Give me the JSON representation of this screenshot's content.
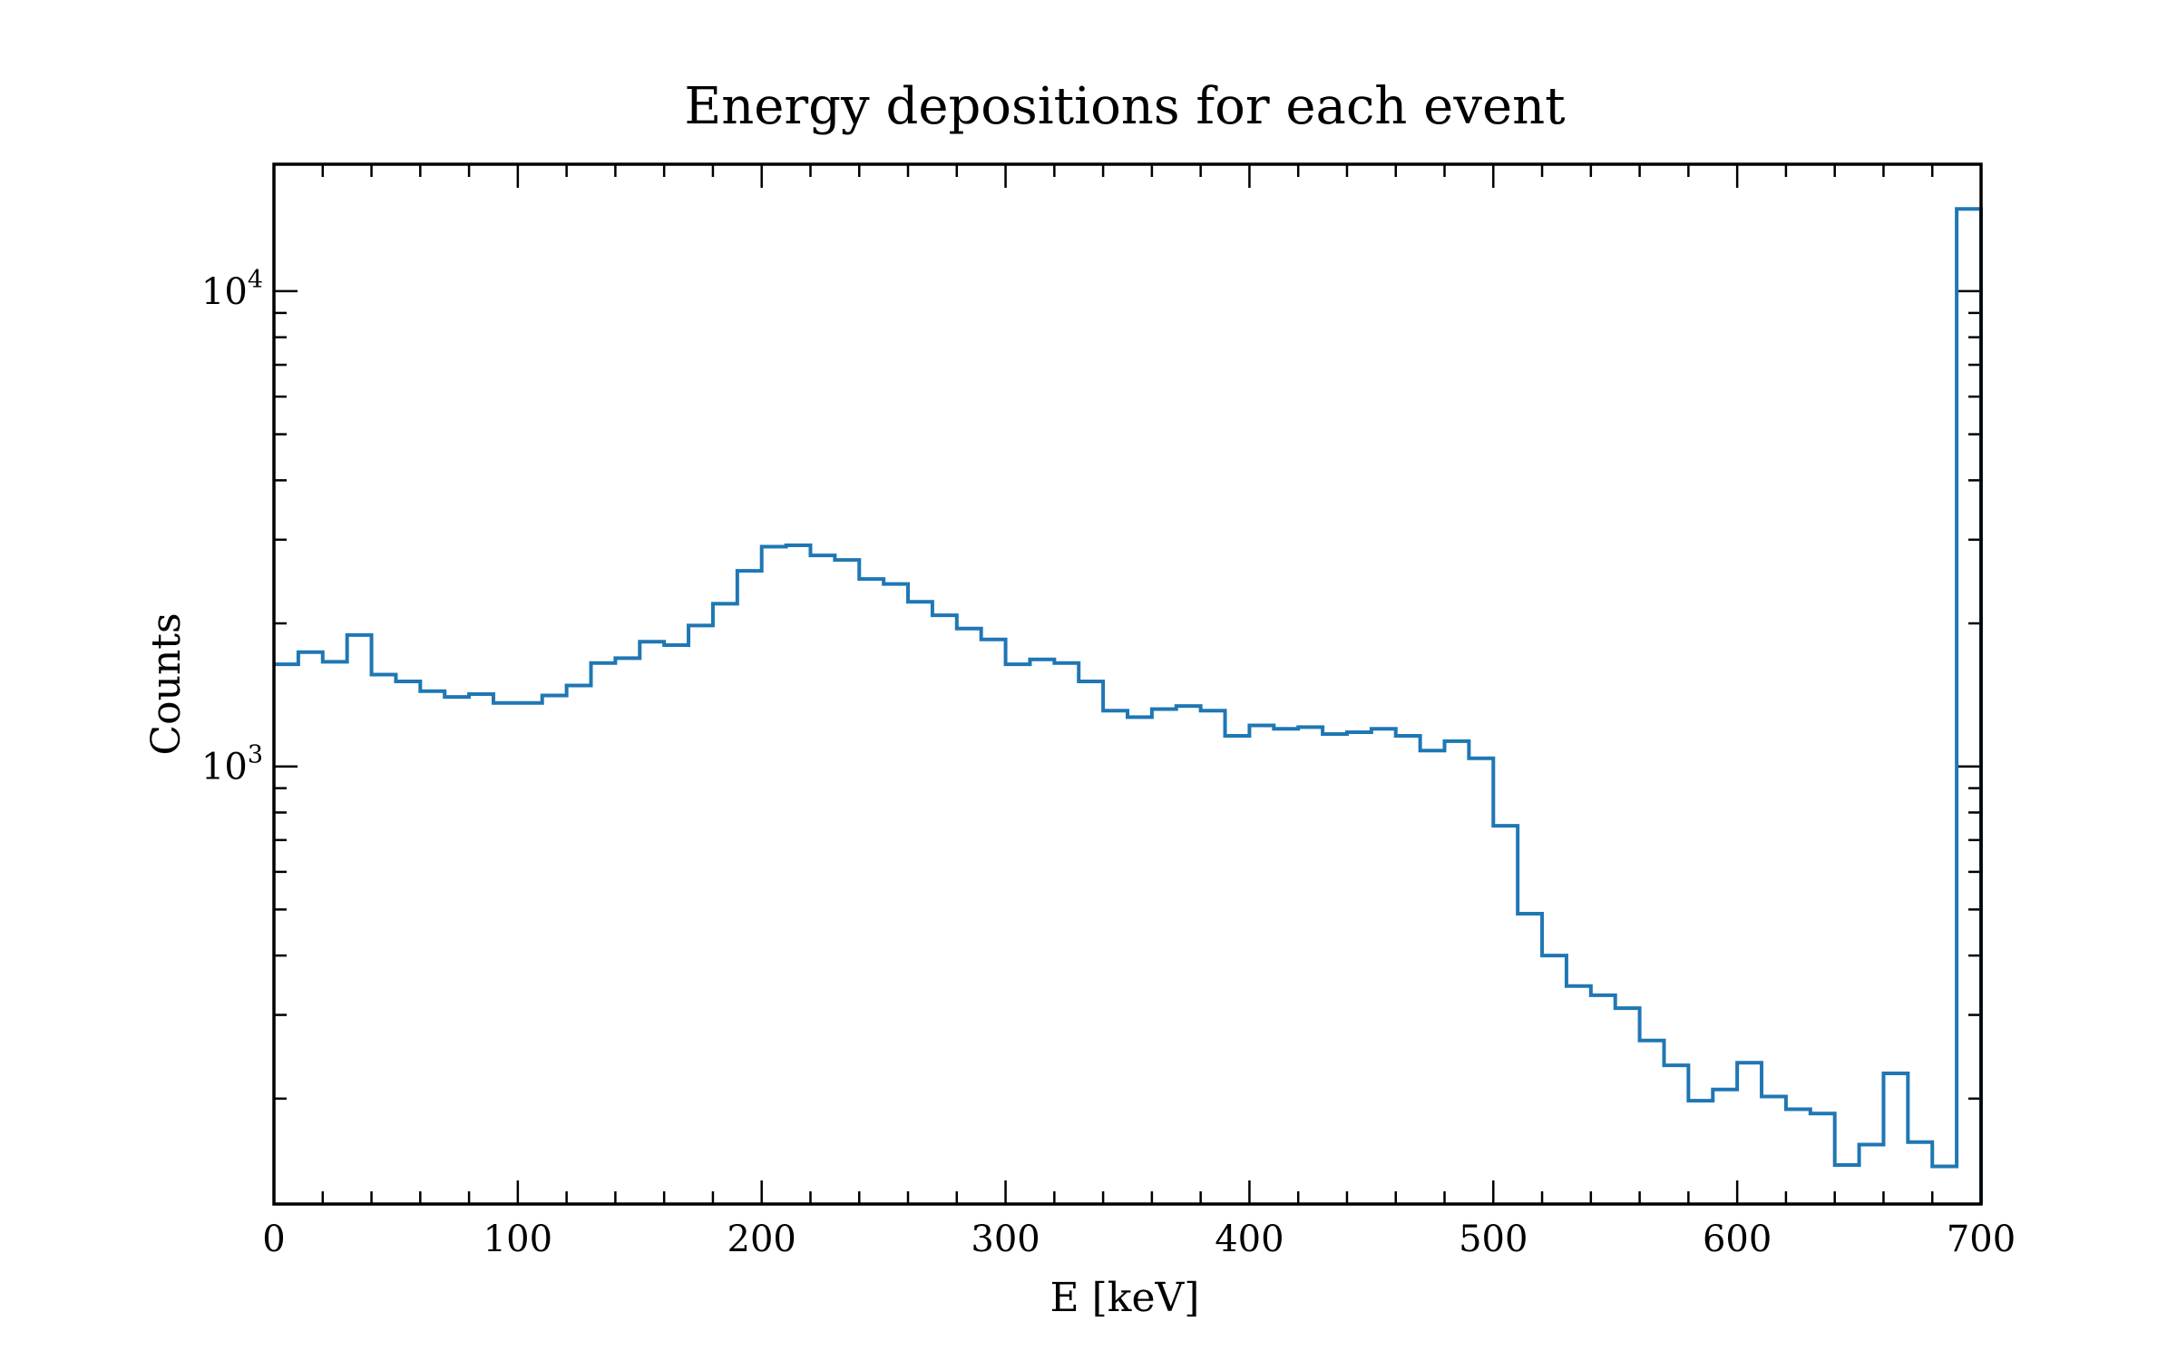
{
  "chart_data": {
    "type": "line",
    "title": "Energy depositions for each event",
    "xlabel": "E [keV]",
    "ylabel": "Counts",
    "xlim": [
      0,
      700
    ],
    "ylim": [
      120,
      18500
    ],
    "yscale": "log",
    "grid": false,
    "drawstyle": "steps",
    "color": "#1f77b4",
    "x_ticks": [
      "0",
      "100",
      "200",
      "300",
      "400",
      "500",
      "600",
      "700"
    ],
    "y_ticks": [
      {
        "base": "10",
        "exp": "3",
        "value": 1000
      },
      {
        "base": "10",
        "exp": "4",
        "value": 10000
      }
    ],
    "bin_width": 10,
    "bin_edges_start": 0,
    "counts": [
      1640,
      1740,
      1660,
      1890,
      1560,
      1510,
      1440,
      1400,
      1420,
      1360,
      1360,
      1410,
      1480,
      1650,
      1690,
      1830,
      1800,
      1980,
      2200,
      2580,
      2900,
      2920,
      2780,
      2720,
      2480,
      2420,
      2220,
      2080,
      1950,
      1850,
      1640,
      1680,
      1650,
      1510,
      1310,
      1270,
      1320,
      1340,
      1310,
      1160,
      1220,
      1200,
      1210,
      1170,
      1180,
      1200,
      1160,
      1080,
      1130,
      1040,
      750,
      490,
      400,
      345,
      330,
      310,
      265,
      235,
      198,
      209,
      238,
      202,
      190,
      186,
      145,
      160,
      226,
      162,
      144,
      14900
    ]
  }
}
